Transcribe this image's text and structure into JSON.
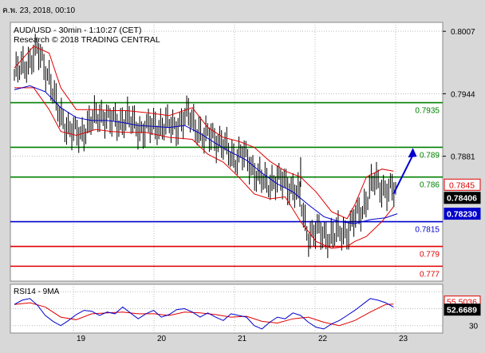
{
  "timestamp": "ค.พ. 23, 2018, 00:10",
  "chart_data": {
    "type": "line",
    "title": "AUD/USD - 30min - 1:10:27 (CET)",
    "subtitle": "Research © 2018 TRADING CENTRAL",
    "main": {
      "y_ticks": [
        "0.8007",
        "0.7944",
        "0.7881"
      ],
      "x_labels": [
        "19",
        "20",
        "21",
        "22",
        "23"
      ],
      "levels": [
        {
          "label": "0.7935",
          "value": 0.7935,
          "color": "#008000"
        },
        {
          "label": "0.789",
          "value": 0.789,
          "color": "#008000"
        },
        {
          "label": "0.786",
          "value": 0.786,
          "color": "#008000"
        },
        {
          "label": "0.7815",
          "value": 0.7815,
          "color": "#0000cc"
        },
        {
          "label": "0.779",
          "value": 0.779,
          "color": "#e00000"
        },
        {
          "label": "0.777",
          "value": 0.777,
          "color": "#e00000"
        }
      ],
      "price_tags": [
        {
          "label": "0.7845",
          "value": 0.7845,
          "style": "red"
        },
        {
          "label": "0.78406",
          "value": 0.78406,
          "style": "black"
        },
        {
          "label": "0.78230",
          "value": 0.7823,
          "style": "blue"
        }
      ],
      "price_path": [
        [
          0,
          0.7963
        ],
        [
          3,
          0.7974
        ],
        [
          6,
          0.7987
        ],
        [
          9,
          0.7962
        ],
        [
          11,
          0.7928
        ],
        [
          13,
          0.7915
        ],
        [
          15,
          0.7905
        ],
        [
          17,
          0.7902
        ],
        [
          19,
          0.7913
        ],
        [
          21,
          0.7919
        ],
        [
          23,
          0.7924
        ],
        [
          25,
          0.7916
        ],
        [
          27,
          0.7915
        ],
        [
          29,
          0.792
        ],
        [
          31,
          0.7912
        ],
        [
          33,
          0.7908
        ],
        [
          35,
          0.791
        ],
        [
          37,
          0.7912
        ],
        [
          39,
          0.7912
        ],
        [
          41,
          0.791
        ],
        [
          43,
          0.7916
        ],
        [
          45,
          0.7922
        ],
        [
          47,
          0.7912
        ],
        [
          49,
          0.7898
        ],
        [
          51,
          0.7904
        ],
        [
          53,
          0.7895
        ],
        [
          55,
          0.7887
        ],
        [
          57,
          0.788
        ],
        [
          59,
          0.7882
        ],
        [
          61,
          0.7874
        ],
        [
          63,
          0.786
        ],
        [
          65,
          0.7853
        ],
        [
          67,
          0.7857
        ],
        [
          69,
          0.7855
        ],
        [
          71,
          0.7852
        ],
        [
          73,
          0.7845
        ],
        [
          74,
          0.7835
        ],
        [
          75,
          0.7815
        ],
        [
          76,
          0.7802
        ],
        [
          78,
          0.7805
        ],
        [
          80,
          0.7802
        ],
        [
          82,
          0.78
        ],
        [
          84,
          0.7803
        ],
        [
          86,
          0.7806
        ],
        [
          88,
          0.7818
        ],
        [
          90,
          0.7827
        ],
        [
          92,
          0.785
        ],
        [
          93,
          0.7855
        ],
        [
          95,
          0.785
        ],
        [
          97,
          0.7847
        ],
        [
          99,
          0.7844
        ]
      ],
      "ma_path": [
        [
          0,
          0.7948
        ],
        [
          4,
          0.7952
        ],
        [
          8,
          0.7946
        ],
        [
          12,
          0.793
        ],
        [
          16,
          0.792
        ],
        [
          20,
          0.7917
        ],
        [
          24,
          0.7917
        ],
        [
          28,
          0.7915
        ],
        [
          32,
          0.7912
        ],
        [
          36,
          0.7911
        ],
        [
          40,
          0.791
        ],
        [
          44,
          0.7912
        ],
        [
          48,
          0.7904
        ],
        [
          52,
          0.7894
        ],
        [
          56,
          0.7885
        ],
        [
          60,
          0.7877
        ],
        [
          64,
          0.7864
        ],
        [
          68,
          0.7853
        ],
        [
          72,
          0.7845
        ],
        [
          76,
          0.7832
        ],
        [
          80,
          0.782
        ],
        [
          84,
          0.7815
        ],
        [
          88,
          0.7813
        ],
        [
          92,
          0.7817
        ],
        [
          96,
          0.7819
        ],
        [
          99,
          0.7823
        ]
      ],
      "band_upper": [
        [
          0,
          0.797
        ],
        [
          5,
          0.7992
        ],
        [
          9,
          0.7985
        ],
        [
          12,
          0.795
        ],
        [
          16,
          0.7928
        ],
        [
          21,
          0.7928
        ],
        [
          25,
          0.7927
        ],
        [
          29,
          0.7927
        ],
        [
          34,
          0.7925
        ],
        [
          40,
          0.7922
        ],
        [
          46,
          0.793
        ],
        [
          50,
          0.791
        ],
        [
          54,
          0.79
        ],
        [
          58,
          0.7896
        ],
        [
          62,
          0.789
        ],
        [
          66,
          0.7876
        ],
        [
          70,
          0.7866
        ],
        [
          74,
          0.786
        ],
        [
          78,
          0.7845
        ],
        [
          82,
          0.7825
        ],
        [
          86,
          0.7818
        ],
        [
          88,
          0.7832
        ],
        [
          91,
          0.786
        ],
        [
          95,
          0.7868
        ],
        [
          98,
          0.7866
        ]
      ],
      "band_lower": [
        [
          0,
          0.795
        ],
        [
          5,
          0.795
        ],
        [
          9,
          0.7928
        ],
        [
          12,
          0.7906
        ],
        [
          16,
          0.7902
        ],
        [
          21,
          0.7908
        ],
        [
          25,
          0.7906
        ],
        [
          29,
          0.7905
        ],
        [
          34,
          0.7905
        ],
        [
          40,
          0.79
        ],
        [
          46,
          0.7898
        ],
        [
          50,
          0.7883
        ],
        [
          54,
          0.7875
        ],
        [
          58,
          0.786
        ],
        [
          62,
          0.7843
        ],
        [
          66,
          0.7838
        ],
        [
          70,
          0.784
        ],
        [
          74,
          0.7815
        ],
        [
          78,
          0.7795
        ],
        [
          82,
          0.7788
        ],
        [
          86,
          0.779
        ],
        [
          88,
          0.7795
        ],
        [
          91,
          0.78
        ],
        [
          95,
          0.7815
        ],
        [
          98,
          0.783
        ]
      ],
      "arrow": [
        [
          98,
          0.7843
        ],
        [
          103,
          0.7887
        ]
      ]
    },
    "rsi": {
      "label": "RSI14 - 9MA",
      "y_ticks": [
        "30"
      ],
      "tags": [
        {
          "label": "55.5036",
          "value": 55.5036,
          "style": "red"
        },
        {
          "label": "52.6689",
          "value": 52.6689,
          "style": "black"
        }
      ],
      "rsi_path": [
        [
          0,
          55
        ],
        [
          2,
          60
        ],
        [
          4,
          62
        ],
        [
          6,
          54
        ],
        [
          8,
          42
        ],
        [
          10,
          35
        ],
        [
          12,
          30
        ],
        [
          14,
          36
        ],
        [
          16,
          43
        ],
        [
          18,
          48
        ],
        [
          20,
          47
        ],
        [
          22,
          42
        ],
        [
          24,
          46
        ],
        [
          26,
          44
        ],
        [
          28,
          52
        ],
        [
          30,
          45
        ],
        [
          32,
          38
        ],
        [
          34,
          44
        ],
        [
          36,
          48
        ],
        [
          38,
          40
        ],
        [
          40,
          43
        ],
        [
          42,
          49
        ],
        [
          44,
          50
        ],
        [
          46,
          46
        ],
        [
          48,
          40
        ],
        [
          50,
          45
        ],
        [
          52,
          40
        ],
        [
          54,
          36
        ],
        [
          56,
          44
        ],
        [
          58,
          42
        ],
        [
          60,
          40
        ],
        [
          62,
          30
        ],
        [
          64,
          26
        ],
        [
          66,
          34
        ],
        [
          68,
          40
        ],
        [
          70,
          38
        ],
        [
          72,
          45
        ],
        [
          74,
          42
        ],
        [
          76,
          34
        ],
        [
          78,
          28
        ],
        [
          80,
          26
        ],
        [
          82,
          32
        ],
        [
          84,
          36
        ],
        [
          86,
          42
        ],
        [
          88,
          48
        ],
        [
          90,
          55
        ],
        [
          92,
          62
        ],
        [
          94,
          60
        ],
        [
          96,
          57
        ],
        [
          98,
          52
        ]
      ],
      "ma_path": [
        [
          0,
          55
        ],
        [
          4,
          57
        ],
        [
          8,
          52
        ],
        [
          12,
          40
        ],
        [
          16,
          37
        ],
        [
          20,
          44
        ],
        [
          24,
          45
        ],
        [
          28,
          46
        ],
        [
          32,
          44
        ],
        [
          36,
          44
        ],
        [
          40,
          42
        ],
        [
          44,
          46
        ],
        [
          48,
          45
        ],
        [
          52,
          43
        ],
        [
          56,
          40
        ],
        [
          60,
          41
        ],
        [
          64,
          35
        ],
        [
          68,
          33
        ],
        [
          72,
          38
        ],
        [
          76,
          40
        ],
        [
          80,
          34
        ],
        [
          84,
          30
        ],
        [
          88,
          36
        ],
        [
          92,
          46
        ],
        [
          96,
          55
        ],
        [
          98,
          55.5
        ]
      ]
    }
  }
}
